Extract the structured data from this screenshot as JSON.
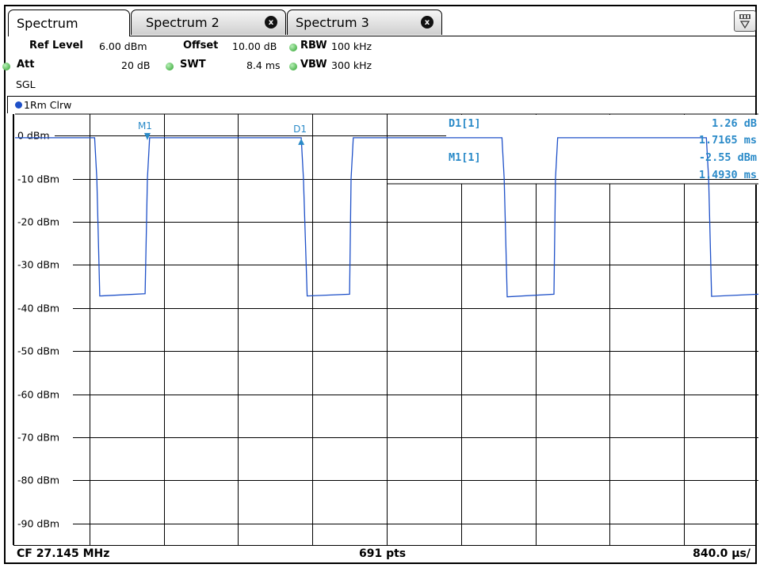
{
  "tabs": [
    {
      "label": "Spectrum",
      "active": true
    },
    {
      "label": "Spectrum 2",
      "close": "x"
    },
    {
      "label": "Spectrum 3",
      "close": "x"
    }
  ],
  "settings": {
    "ref_level_label": "Ref Level",
    "ref_level_value": "6.00 dBm",
    "offset_label": "Offset",
    "offset_value": "10.00 dB",
    "rbw_label": "RBW",
    "rbw_value": "100 kHz",
    "att_label": "Att",
    "att_value": "20 dB",
    "swt_label": "SWT",
    "swt_value": "8.4 ms",
    "vbw_label": "VBW",
    "vbw_value": "300 kHz",
    "mode": "SGL"
  },
  "trace": {
    "label": "1Rm Clrw",
    "color": "#1e50c8"
  },
  "markers": {
    "m1_label": "M1",
    "d1_label": "D1",
    "d1_name": "D1[1]",
    "d1_value1": "1.26 dB",
    "d1_value2": "1.7165 ms",
    "m1_name": "M1[1]",
    "m1_value1": "-2.55 dBm",
    "m1_value2": "1.4930 ms",
    "color": "#2a8ac8"
  },
  "footer": {
    "cf": "CF 27.145 MHz",
    "pts": "691 pts",
    "span": "840.0 µs/"
  },
  "chart_data": {
    "type": "line",
    "ylim": [
      -95,
      5
    ],
    "y_tick_labels": [
      "0 dBm",
      "-10 dBm",
      "-20 dBm",
      "-30 dBm",
      "-40 dBm",
      "-50 dBm",
      "-60 dBm",
      "-70 dBm",
      "-80 dBm",
      "-90 dBm"
    ],
    "y_tick_values": [
      0,
      -10,
      -20,
      -30,
      -40,
      -50,
      -60,
      -70,
      -80,
      -90
    ],
    "x_divisions": 10,
    "x_per_div_us": 840.0,
    "grid": true,
    "series": [
      {
        "x_div": [
          0,
          1.07,
          1.1,
          1.14,
          1.75,
          1.78,
          1.81,
          3.85,
          3.88,
          3.93,
          4.5,
          4.52,
          4.55,
          6.55,
          6.58,
          6.62,
          7.25,
          7.27,
          7.3,
          9.3,
          9.33,
          9.37,
          10
        ],
        "y_dbm": [
          -0.5,
          -0.5,
          -10,
          -37.2,
          -36.7,
          -10,
          -0.5,
          -0.5,
          -10,
          -37.2,
          -36.8,
          -10,
          -0.5,
          -0.5,
          -10,
          -37.4,
          -36.8,
          -10,
          -0.5,
          -0.5,
          -10,
          -37.3,
          -36.8
        ]
      }
    ]
  }
}
